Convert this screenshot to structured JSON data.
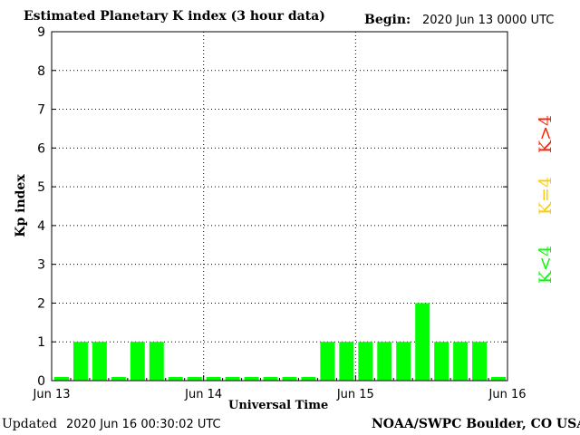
{
  "header": {
    "title": "Estimated Planetary K index (3 hour data)",
    "begin_label": "Begin:",
    "begin_value": "2020 Jun 13 0000 UTC"
  },
  "footer": {
    "updated_label": "Updated",
    "updated_value": "2020 Jun 16 00:30:02 UTC",
    "source": "NOAA/SWPC Boulder, CO USA"
  },
  "legend": {
    "above": {
      "label": "K>4",
      "color": "#ff2200"
    },
    "equal": {
      "label": "K=4",
      "color": "#ffcc00"
    },
    "below": {
      "label": "K<4",
      "color": "#00ff00"
    }
  },
  "chart_data": {
    "type": "bar",
    "title": "Estimated Planetary K index (3 hour data)",
    "xlabel": "Universal Time",
    "ylabel": "Kp index",
    "ylim": [
      0,
      9
    ],
    "yticks": [
      "0",
      "1",
      "2",
      "3",
      "4",
      "5",
      "6",
      "7",
      "8",
      "9"
    ],
    "xticks": [
      "Jun 13",
      "Jun 14",
      "Jun 15",
      "Jun 16"
    ],
    "grid": true,
    "interval_hours": 3,
    "values": [
      0,
      1,
      1,
      0,
      1,
      1,
      0,
      0,
      0,
      0,
      0,
      0,
      0,
      0,
      1,
      1,
      1,
      1,
      1,
      2,
      1,
      1,
      1,
      0
    ],
    "bar_color": "#00ff00"
  }
}
